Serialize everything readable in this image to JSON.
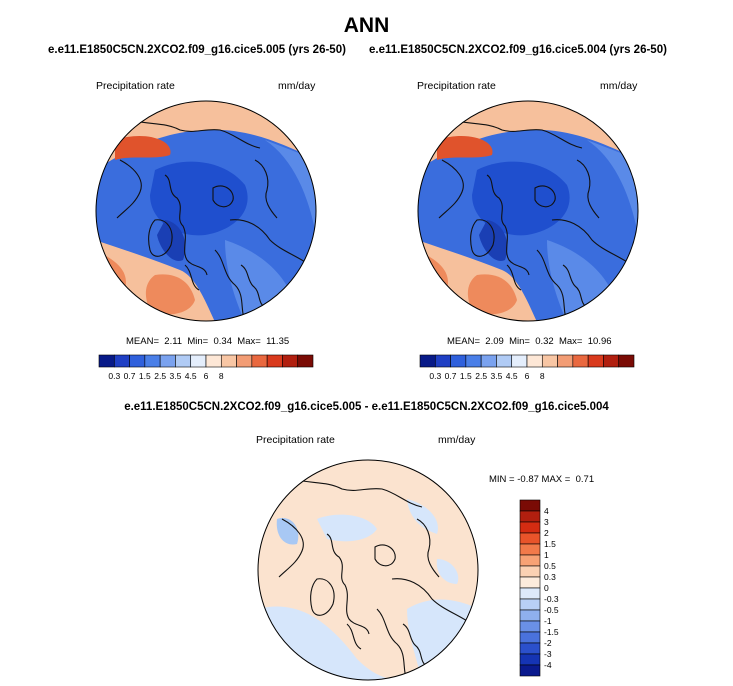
{
  "figure_title": "ANN",
  "colors": {
    "ocean_blue": "#3a6ddd",
    "deep_blue": "#1f4fce",
    "mid_blue": "#5a8ae8",
    "light_blue": "#a8c8f4",
    "pale_blue": "#d6e6fb",
    "pale_orange": "#fbe3cf",
    "light_orange": "#f6c09c",
    "orange": "#ee8a5c",
    "red_orange": "#e0532c",
    "coast": "#111111"
  },
  "chart_data": [
    {
      "type": "heatmap",
      "id": "panel_case",
      "title": "e.e11.E1850C5CN.2XCO2.f09_g16.cice5.005 (yrs 26-50)",
      "variable": "Precipitation rate",
      "units": "mm/day",
      "projection": "polar stereographic (north)",
      "stats": {
        "mean_label": "MEAN=",
        "mean": "2.11",
        "min_label": "Min=",
        "min": "0.34",
        "max_label": "Max=",
        "max": "11.35"
      },
      "colorbar": {
        "orientation": "horizontal",
        "levels": [
          0.3,
          0.7,
          1.5,
          2.5,
          3.5,
          4.5,
          6,
          8
        ],
        "tick_labels": [
          "0.3",
          "0.7",
          "1.5",
          "2.5",
          "3.5",
          "4.5",
          "6",
          "8"
        ],
        "colors": [
          "#081a88",
          "#1f3fc4",
          "#2f60dc",
          "#4a7fe8",
          "#7aa2ef",
          "#b0cbf5",
          "#e4eefc",
          "#fde7d6",
          "#f8c6a4",
          "#f29c74",
          "#e9683f",
          "#d93a1d",
          "#b11f0f",
          "#7a0b05"
        ]
      }
    },
    {
      "type": "heatmap",
      "id": "panel_control",
      "title": "e.e11.E1850C5CN.2XCO2.f09_g16.cice5.004 (yrs 26-50)",
      "variable": "Precipitation rate",
      "units": "mm/day",
      "projection": "polar stereographic (north)",
      "stats": {
        "mean_label": "MEAN=",
        "mean": "2.09",
        "min_label": "Min=",
        "min": "0.32",
        "max_label": "Max=",
        "max": "10.96"
      },
      "colorbar": {
        "orientation": "horizontal",
        "levels": [
          0.3,
          0.7,
          1.5,
          2.5,
          3.5,
          4.5,
          6,
          8
        ],
        "tick_labels": [
          "0.3",
          "0.7",
          "1.5",
          "2.5",
          "3.5",
          "4.5",
          "6",
          "8"
        ],
        "colors": [
          "#081a88",
          "#1f3fc4",
          "#2f60dc",
          "#4a7fe8",
          "#7aa2ef",
          "#b0cbf5",
          "#e4eefc",
          "#fde7d6",
          "#f8c6a4",
          "#f29c74",
          "#e9683f",
          "#d93a1d",
          "#b11f0f",
          "#7a0b05"
        ]
      }
    },
    {
      "type": "heatmap",
      "id": "panel_diff",
      "title": "e.e11.E1850C5CN.2XCO2.f09_g16.cice5.005 - e.e11.E1850C5CN.2XCO2.f09_g16.cice5.004",
      "variable": "Precipitation rate",
      "units": "mm/day",
      "projection": "polar stereographic (north)",
      "stats": {
        "min_label": "MIN =",
        "min": "-0.87",
        "max_label": "MAX =",
        "max": "0.71"
      },
      "colorbar": {
        "orientation": "vertical",
        "levels": [
          -4,
          -3,
          -2,
          -1.5,
          -1,
          -0.5,
          -0.3,
          0,
          0.3,
          0.5,
          1,
          1.5,
          2,
          3,
          4
        ],
        "tick_labels": [
          "4",
          "3",
          "2",
          "1.5",
          "1",
          "0.5",
          "0.3",
          "0",
          "-0.3",
          "-0.5",
          "-1",
          "-1.5",
          "-2",
          "-3",
          "-4"
        ],
        "colors": [
          "#7a0b05",
          "#b11f0f",
          "#d42c12",
          "#e9542a",
          "#f27a4a",
          "#f7a275",
          "#fbd1b3",
          "#fdebdc",
          "#dde9fb",
          "#b9d0f6",
          "#8fb0ee",
          "#6a90e6",
          "#4a72dc",
          "#2b50cc",
          "#1534b4",
          "#0a1a8e"
        ]
      }
    }
  ]
}
